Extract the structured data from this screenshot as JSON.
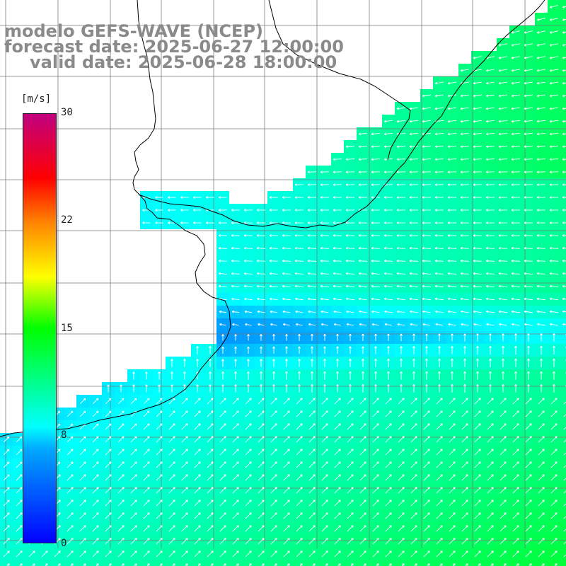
{
  "header": {
    "line1": "modelo GEFS-WAVE (NCEP)",
    "line2": "forecast date: 2025-06-27 12:00:00",
    "line3": "valid date: 2025-06-28 18:00:00"
  },
  "colorbar": {
    "unit": "[m/s]",
    "ticks": [
      "30",
      "22",
      "15",
      "8",
      "0"
    ],
    "vmin": 0,
    "vmax": 30
  },
  "colors": {
    "title_gray": "#8a8a8a",
    "grid": "#808080",
    "coast": "#000000",
    "arrow": "#ffffff"
  }
}
